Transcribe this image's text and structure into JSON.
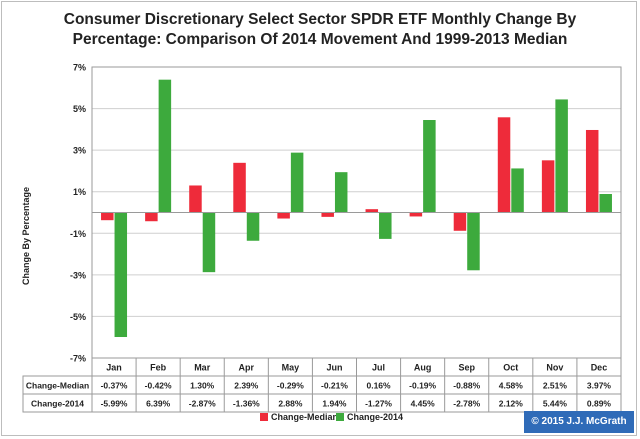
{
  "chart_data": {
    "type": "bar",
    "title_line1": "Consumer Discretionary Select Sector SPDR ETF Monthly Change By",
    "title_line2": "Percentage: Comparison Of 2014 Movement And 1999-2013 Median",
    "ylabel": "Change By Percentage",
    "xlabel": "",
    "ylim": [
      -7,
      7
    ],
    "yticks": [
      -7,
      -5,
      -3,
      -1,
      1,
      3,
      5,
      7
    ],
    "ytick_labels": [
      "-7%",
      "-5%",
      "-3%",
      "-1%",
      "1%",
      "3%",
      "5%",
      "7%"
    ],
    "grid": true,
    "legend": "bottom",
    "categories": [
      "Jan",
      "Feb",
      "Mar",
      "Apr",
      "May",
      "Jun",
      "Jul",
      "Aug",
      "Sep",
      "Oct",
      "Nov",
      "Dec"
    ],
    "series": [
      {
        "name": "Change-Median",
        "color": "#ee2b3a",
        "values": [
          -0.37,
          -0.42,
          1.3,
          2.39,
          -0.29,
          -0.21,
          0.16,
          -0.19,
          -0.88,
          4.58,
          2.51,
          3.97
        ],
        "labels": [
          "-0.37%",
          "-0.42%",
          "1.30%",
          "2.39%",
          "-0.29%",
          "-0.21%",
          "0.16%",
          "-0.19%",
          "-0.88%",
          "4.58%",
          "2.51%",
          "3.97%"
        ]
      },
      {
        "name": "Change-2014",
        "color": "#3daa3d",
        "values": [
          -5.99,
          6.39,
          -2.87,
          -1.36,
          2.88,
          1.94,
          -1.27,
          4.45,
          -2.78,
          2.12,
          5.44,
          0.89
        ],
        "labels": [
          "-5.99%",
          "6.39%",
          "-2.87%",
          "-1.36%",
          "2.88%",
          "1.94%",
          "-1.27%",
          "4.45%",
          "-2.78%",
          "2.12%",
          "5.44%",
          "0.89%"
        ]
      }
    ]
  },
  "copyright": "© 2015 J.J. McGrath"
}
